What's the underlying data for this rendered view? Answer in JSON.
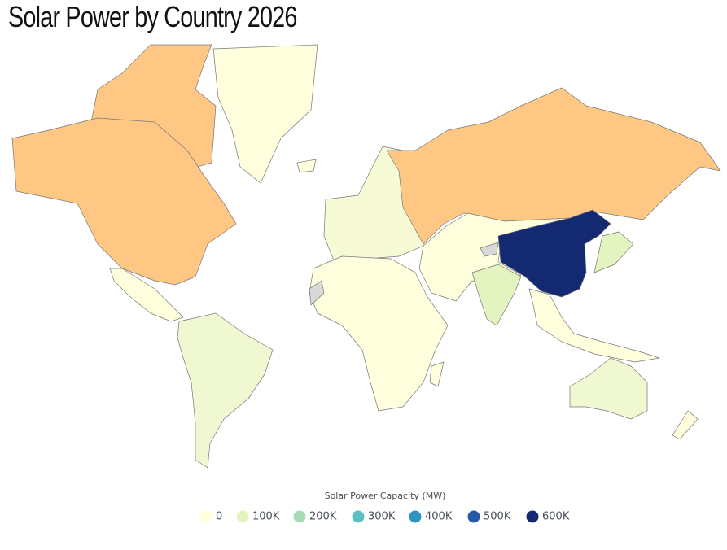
{
  "title": "Solar Power by Country 2026",
  "legend": {
    "title": "Solar Power Capacity (MW)",
    "items": [
      {
        "label": "0",
        "color": "#ffffdd"
      },
      {
        "label": "100K",
        "color": "#e4f4c0"
      },
      {
        "label": "200K",
        "color": "#a8dcb8"
      },
      {
        "label": "300K",
        "color": "#5dbfc0"
      },
      {
        "label": "400K",
        "color": "#2e95c2"
      },
      {
        "label": "500K",
        "color": "#2559a8"
      },
      {
        "label": "600K",
        "color": "#132a73"
      }
    ]
  }
}
